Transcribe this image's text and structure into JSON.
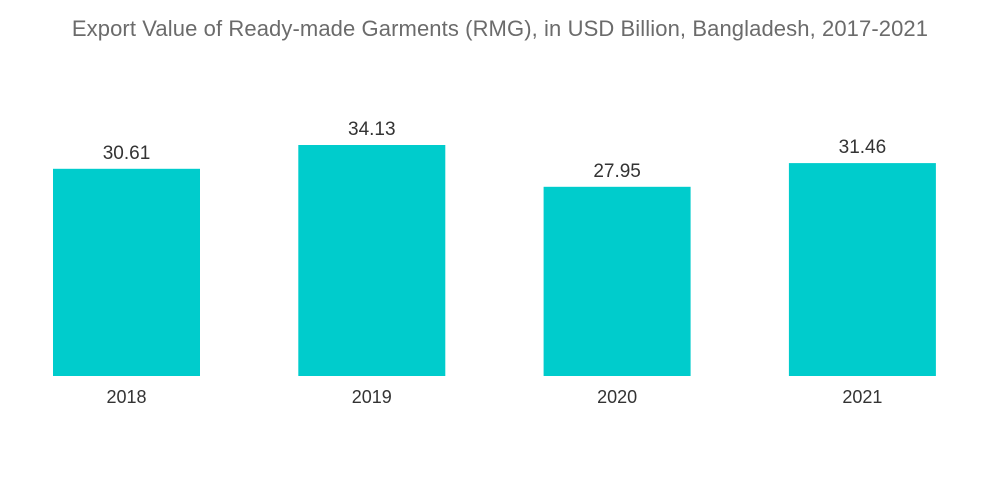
{
  "chart_data": {
    "type": "bar",
    "title": "Export Value of Ready-made Garments (RMG), in USD Billion, Bangladesh, 2017-2021",
    "categories": [
      "2018",
      "2019",
      "2020",
      "2021"
    ],
    "values": [
      30.61,
      34.13,
      27.95,
      31.46
    ],
    "value_labels": [
      "30.61",
      "34.13",
      "27.95",
      "31.46"
    ],
    "xlabel": "",
    "ylabel": "",
    "ylim": [
      0,
      34.13
    ],
    "grid": false,
    "legend": "none",
    "bar_color": "#00CCCC"
  }
}
